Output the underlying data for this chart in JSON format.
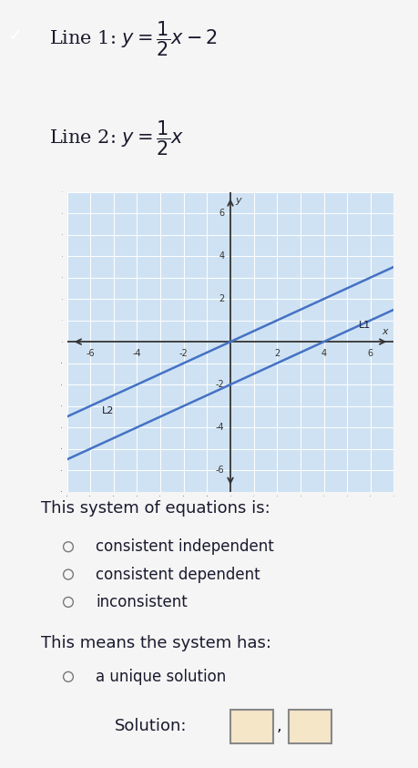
{
  "line1_slope": 0.5,
  "line1_intercept": -2,
  "line2_slope": 0.5,
  "line2_intercept": 0,
  "line_color": "#4472c4",
  "graph_bg": "#cfe2f3",
  "xlim": [
    -7,
    7
  ],
  "ylim": [
    -7,
    7
  ],
  "xtick_labels": [
    -6,
    -4,
    -2,
    2,
    4,
    6
  ],
  "ytick_labels": [
    -6,
    -4,
    -2,
    2,
    4,
    6
  ],
  "L1_label": "L1",
  "L2_label": "L2",
  "system_header": "This system of equations is:",
  "options": [
    "consistent independent",
    "consistent dependent",
    "inconsistent"
  ],
  "means_header": "This means the system has:",
  "means_option": "a unique solution",
  "solution_label": "Solution:",
  "page_bg": "#f5f5f5",
  "text_color": "#1a1a2e",
  "font_size_heading": 13,
  "font_size_body": 12,
  "font_size_eq": 15,
  "teal_stripe": "#3dbccc",
  "check_color": "#2a5a8a",
  "grid_color": "#ffffff",
  "axis_color": "#333333",
  "box_fill": "#f5e6c8"
}
